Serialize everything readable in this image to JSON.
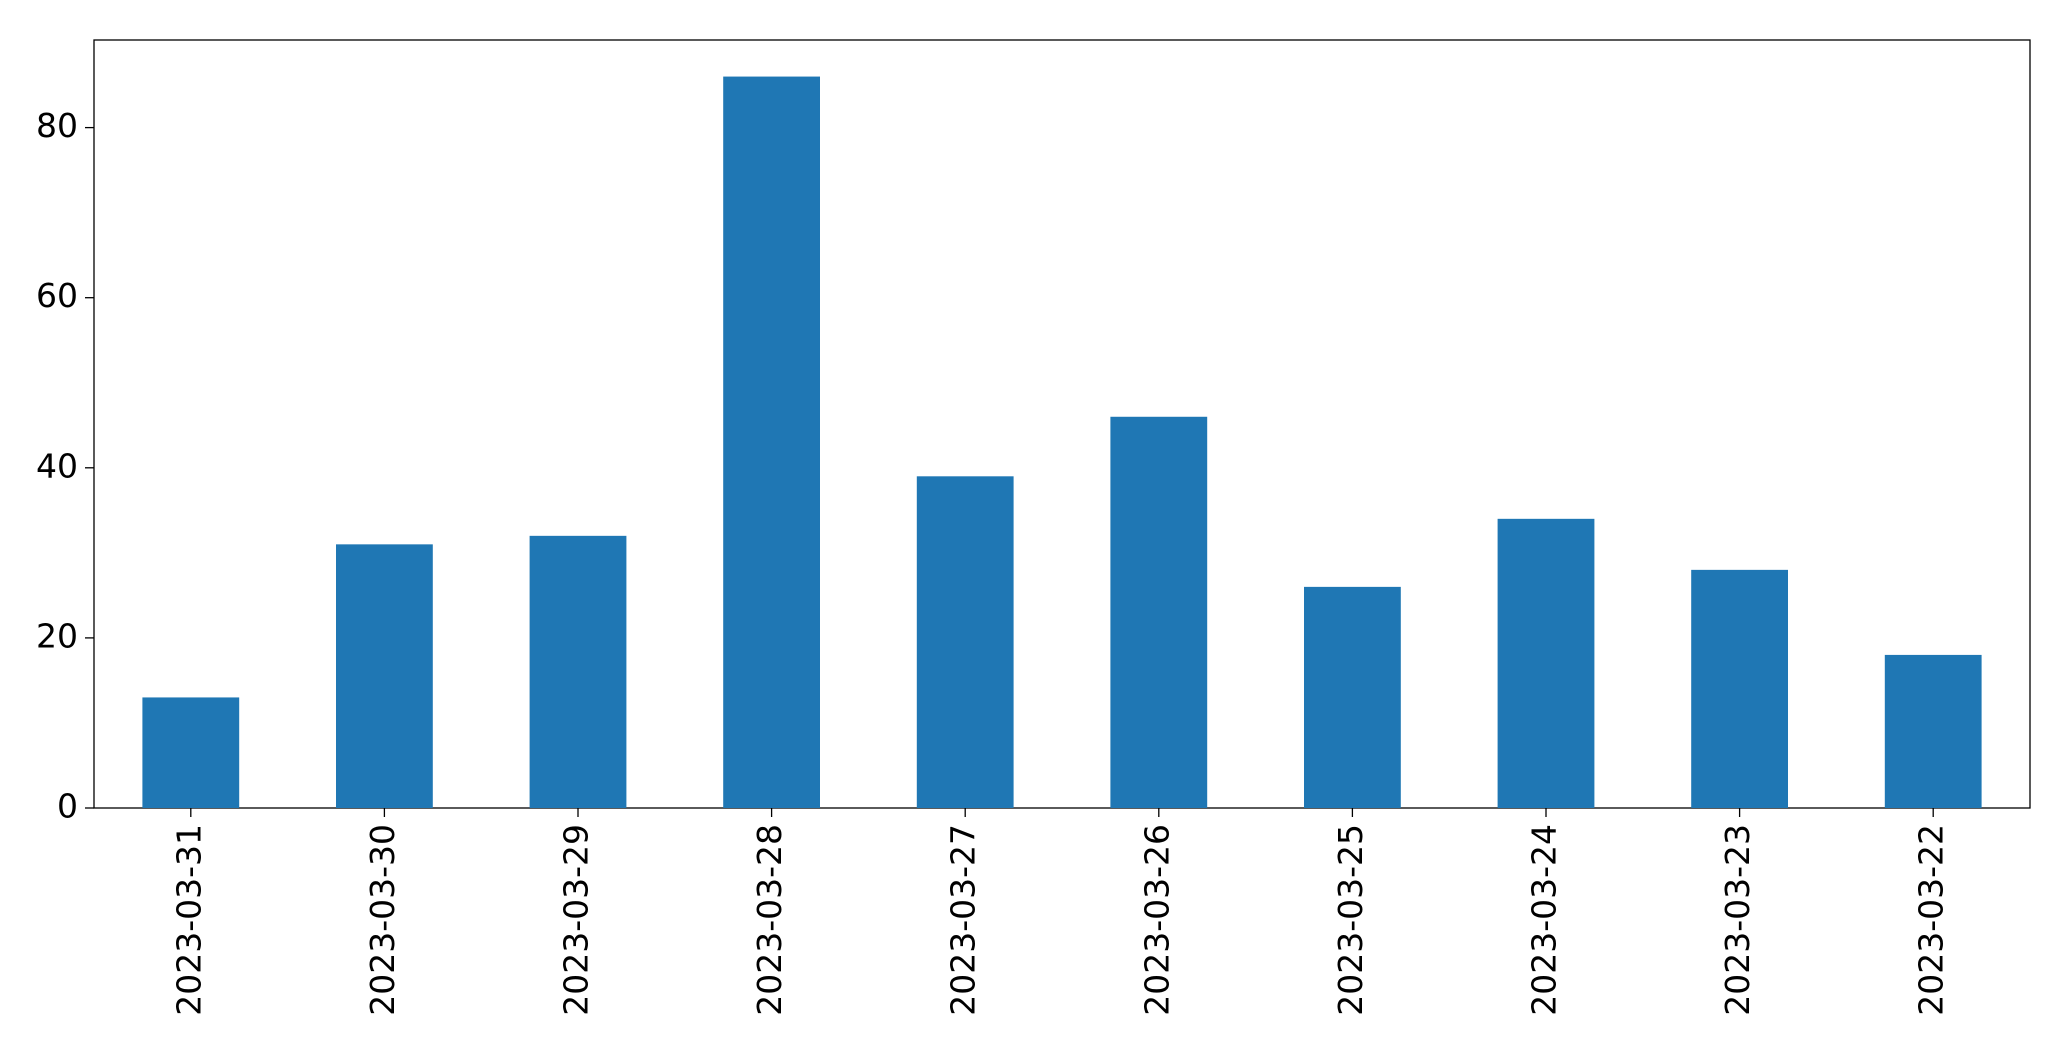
{
  "chart_data": {
    "type": "bar",
    "categories": [
      "2023-03-31",
      "2023-03-30",
      "2023-03-29",
      "2023-03-28",
      "2023-03-27",
      "2023-03-26",
      "2023-03-25",
      "2023-03-24",
      "2023-03-23",
      "2023-03-22"
    ],
    "values": [
      13,
      31,
      32,
      86,
      39,
      46,
      26,
      34,
      28,
      18
    ],
    "color": "#1f77b4",
    "ylim": [
      0,
      90.3
    ],
    "yticks": [
      0,
      20,
      40,
      60,
      80
    ],
    "grid": false
  }
}
